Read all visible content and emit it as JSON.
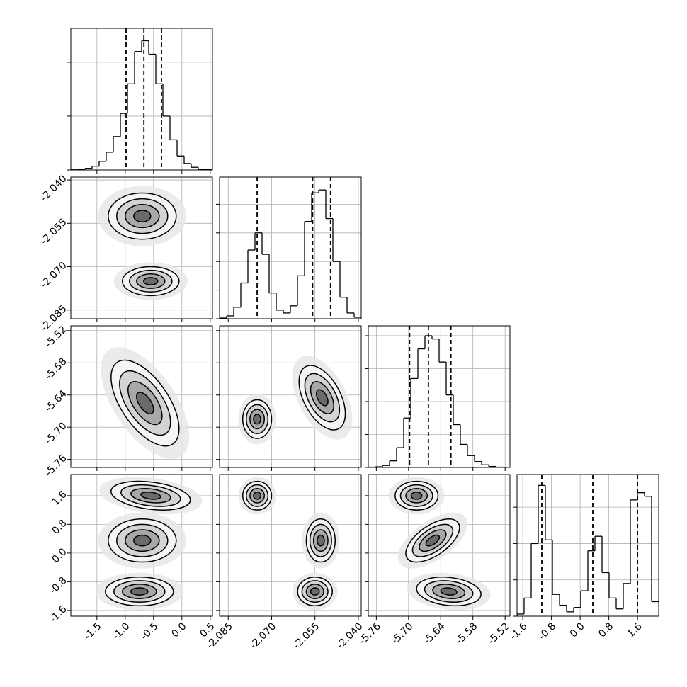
{
  "chart_data": {
    "type": "corner",
    "params": [
      {
        "range": [
          -1.96,
          0.54
        ],
        "ticks": [
          -1.5,
          {
            "value": -1,
            "label": "-1.0"
          },
          -0.5,
          {
            "value": 0,
            "label": "0.0"
          },
          0.5
        ],
        "quantiles": [
          -0.985,
          -0.67,
          -0.36
        ],
        "hist": {
          "bins": [
            -1.96,
            -1.835,
            -1.71,
            -1.585,
            -1.46,
            -1.335,
            -1.21,
            -1.085,
            -0.96,
            -0.835,
            -0.71,
            -0.585,
            -0.46,
            -0.335,
            -0.21,
            -0.085,
            0.04,
            0.165,
            0.29,
            0.415,
            0.54
          ],
          "counts": [
            3,
            10,
            30,
            70,
            160,
            330,
            620,
            1050,
            1600,
            2200,
            2400,
            2150,
            1600,
            1000,
            560,
            260,
            120,
            50,
            15,
            5
          ],
          "ylim": [
            0,
            2630
          ],
          "yticks": [
            0,
            1000,
            2000
          ]
        }
      },
      {
        "range": [
          -2.088,
          -2.039
        ],
        "ticks": [
          -2.085,
          {
            "value": -2.07,
            "label": "-2.070"
          },
          -2.055,
          {
            "value": -2.04,
            "label": "-2.040"
          }
        ],
        "quantiles": [
          -2.075,
          -2.0558,
          -2.0496
        ],
        "hist": {
          "bins": [
            -2.088,
            -2.08555,
            -2.0831,
            -2.08065,
            -2.0782,
            -2.07575,
            -2.0733,
            -2.07085,
            -2.0684,
            -2.06595,
            -2.0635,
            -2.06105,
            -2.0586,
            -2.05615,
            -2.0537,
            -2.05125,
            -2.0488,
            -2.04635,
            -2.0439,
            -2.04145,
            -2.039
          ],
          "counts": [
            5,
            20,
            80,
            250,
            480,
            600,
            450,
            180,
            60,
            40,
            90,
            300,
            680,
            880,
            900,
            700,
            400,
            150,
            40,
            10
          ],
          "ylim": [
            0,
            990
          ],
          "yticks": [
            0,
            200,
            400,
            600,
            800
          ]
        }
      },
      {
        "range": [
          -5.775,
          -5.511
        ],
        "ticks": [
          -5.76,
          {
            "value": -5.7,
            "label": "-5.70"
          },
          -5.64,
          -5.58,
          -5.52
        ],
        "quantiles": [
          -5.698,
          -5.663,
          -5.621
        ],
        "hist": {
          "bins": [
            -5.775,
            -5.7618,
            -5.7486,
            -5.7354,
            -5.7222,
            -5.709,
            -5.6958,
            -5.6826,
            -5.6694,
            -5.6562,
            -5.643,
            -5.6298,
            -5.6166,
            -5.6034,
            -5.5902,
            -5.577,
            -5.5638,
            -5.5506,
            -5.5374,
            -5.5242,
            -5.511
          ],
          "counts": [
            5,
            10,
            30,
            100,
            300,
            750,
            1350,
            1800,
            2000,
            1950,
            1600,
            1100,
            650,
            350,
            180,
            90,
            40,
            15,
            5,
            2
          ],
          "ylim": [
            0,
            2150
          ],
          "yticks": [
            0,
            500,
            1000,
            1500,
            2000
          ]
        }
      },
      {
        "range": [
          -1.76,
          2.19
        ],
        "ticks": [
          -1.6,
          -0.8,
          {
            "value": 0,
            "label": "0.0"
          },
          0.8,
          1.6
        ],
        "quantiles": [
          -1.069,
          0.353,
          1.6
        ],
        "hist": {
          "bins": [
            -1.76,
            -1.5625,
            -1.365,
            -1.1675,
            -0.97,
            -0.7725,
            -0.575,
            -0.3775,
            -0.18,
            0.0175,
            0.215,
            0.4125,
            0.61,
            0.8075,
            1.005,
            1.2025,
            1.4,
            1.5975,
            1.795,
            1.9925,
            2.19
          ],
          "counts": [
            30,
            250,
            1000,
            1800,
            1050,
            300,
            150,
            60,
            120,
            350,
            900,
            1100,
            600,
            250,
            100,
            450,
            1600,
            1700,
            1650,
            200
          ],
          "ylim": [
            0,
            1950
          ],
          "yticks": [
            0,
            500,
            1000,
            1500
          ]
        }
      }
    ],
    "panels": [
      {
        "row": 1,
        "col": 0,
        "clusters": [
          {
            "x": -0.7,
            "y": -2.0525,
            "sx": 0.3,
            "sy": 0.004,
            "rho": 0
          },
          {
            "x": -0.55,
            "y": -2.075,
            "sx": 0.25,
            "sy": 0.0025,
            "rho": 0
          }
        ]
      },
      {
        "row": 2,
        "col": 0,
        "clusters": [
          {
            "x": -0.65,
            "y": -5.655,
            "sx": 0.3,
            "sy": 0.04,
            "rho": -0.6
          }
        ]
      },
      {
        "row": 2,
        "col": 1,
        "clusters": [
          {
            "x": -2.075,
            "y": -5.685,
            "sx": 0.0025,
            "sy": 0.018,
            "rho": 0
          },
          {
            "x": -2.0525,
            "y": -5.645,
            "sx": 0.004,
            "sy": 0.03,
            "rho": -0.5
          }
        ]
      },
      {
        "row": 3,
        "col": 0,
        "clusters": [
          {
            "x": -0.55,
            "y": 1.6,
            "sx": 0.35,
            "sy": 0.2,
            "rho": -0.3
          },
          {
            "x": -0.7,
            "y": 0.35,
            "sx": 0.3,
            "sy": 0.3,
            "rho": 0
          },
          {
            "x": -0.75,
            "y": -1.07,
            "sx": 0.3,
            "sy": 0.2,
            "rho": 0
          }
        ]
      },
      {
        "row": 3,
        "col": 1,
        "clusters": [
          {
            "x": -2.075,
            "y": 1.6,
            "sx": 0.0025,
            "sy": 0.2,
            "rho": 0
          },
          {
            "x": -2.053,
            "y": 0.35,
            "sx": 0.0025,
            "sy": 0.3,
            "rho": 0
          },
          {
            "x": -2.055,
            "y": -1.07,
            "sx": 0.003,
            "sy": 0.2,
            "rho": 0
          }
        ]
      },
      {
        "row": 3,
        "col": 2,
        "clusters": [
          {
            "x": -5.685,
            "y": 1.6,
            "sx": 0.02,
            "sy": 0.2,
            "rho": 0
          },
          {
            "x": -5.655,
            "y": 0.35,
            "sx": 0.025,
            "sy": 0.3,
            "rho": 0.6
          },
          {
            "x": -5.625,
            "y": -1.07,
            "sx": 0.03,
            "sy": 0.2,
            "rho": -0.2
          }
        ]
      }
    ],
    "grid": true,
    "color": "#000000"
  }
}
